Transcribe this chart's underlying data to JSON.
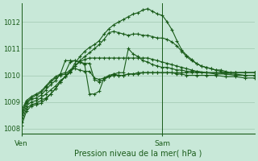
{
  "title": "Pression niveau de la mer( hPa )",
  "background_color": "#c8e8d8",
  "grid_color": "#a0c8b0",
  "line_color": "#1a5c1a",
  "ylim": [
    1007.8,
    1012.7
  ],
  "yticks": [
    1008,
    1009,
    1010,
    1011,
    1012
  ],
  "xlim": [
    0,
    24
  ],
  "ven_x": 0,
  "sam_x": 14.5,
  "series": [
    [
      0.0,
      1008.25,
      0.5,
      1008.75,
      1.0,
      1008.9,
      1.5,
      1008.95,
      2.0,
      1009.05,
      2.5,
      1009.15,
      3.0,
      1009.3,
      3.5,
      1009.5,
      4.0,
      1009.75,
      4.5,
      1009.95,
      5.0,
      1010.15,
      5.5,
      1010.45,
      6.0,
      1010.7,
      6.5,
      1010.9,
      7.0,
      1011.05,
      7.5,
      1011.15,
      8.0,
      1011.3,
      8.5,
      1011.55,
      9.0,
      1011.75,
      9.5,
      1011.9,
      10.0,
      1012.0,
      10.5,
      1012.1,
      11.0,
      1012.2,
      11.5,
      1012.3,
      12.0,
      1012.35,
      12.5,
      1012.45,
      13.0,
      1012.5,
      13.5,
      1012.4,
      14.0,
      1012.3,
      14.5,
      1012.25,
      15.0,
      1012.0,
      15.5,
      1011.7,
      16.0,
      1011.3,
      16.5,
      1010.95,
      17.0,
      1010.75,
      17.5,
      1010.6,
      18.0,
      1010.45,
      18.5,
      1010.35,
      19.0,
      1010.3,
      19.5,
      1010.25,
      20.0,
      1010.2,
      20.5,
      1010.2,
      21.0,
      1010.15,
      21.5,
      1010.1,
      22.0,
      1010.1,
      23.0,
      1010.1,
      24.0,
      1010.1
    ],
    [
      0.0,
      1008.4,
      0.5,
      1008.85,
      1.0,
      1009.0,
      1.5,
      1009.05,
      2.0,
      1009.15,
      2.5,
      1009.3,
      3.0,
      1009.45,
      3.5,
      1009.6,
      4.0,
      1009.8,
      4.5,
      1009.95,
      5.0,
      1010.1,
      5.5,
      1010.35,
      6.0,
      1010.55,
      6.5,
      1010.7,
      7.0,
      1010.85,
      7.5,
      1011.0,
      8.0,
      1011.15,
      8.5,
      1011.35,
      9.0,
      1011.6,
      9.5,
      1011.65,
      10.0,
      1011.6,
      10.5,
      1011.55,
      11.0,
      1011.5,
      11.5,
      1011.55,
      12.0,
      1011.55,
      12.5,
      1011.5,
      13.0,
      1011.5,
      13.5,
      1011.45,
      14.0,
      1011.4,
      14.5,
      1011.4,
      15.0,
      1011.35,
      15.5,
      1011.25,
      16.0,
      1011.1,
      16.5,
      1010.9,
      17.0,
      1010.7,
      17.5,
      1010.55,
      18.0,
      1010.45,
      18.5,
      1010.35,
      19.0,
      1010.3,
      19.5,
      1010.25,
      20.0,
      1010.2,
      20.5,
      1010.15,
      21.0,
      1010.1,
      22.0,
      1010.1,
      23.0,
      1010.1,
      24.0,
      1010.1
    ],
    [
      0.0,
      1008.7,
      0.5,
      1009.05,
      1.0,
      1009.2,
      1.5,
      1009.3,
      2.0,
      1009.4,
      2.5,
      1009.6,
      3.0,
      1009.8,
      3.5,
      1009.95,
      4.0,
      1010.05,
      4.5,
      1010.1,
      5.0,
      1010.5,
      5.5,
      1010.55,
      6.0,
      1010.5,
      6.5,
      1010.45,
      7.0,
      1010.45,
      7.5,
      1009.85,
      8.0,
      1009.75,
      8.5,
      1009.85,
      9.0,
      1009.95,
      9.5,
      1010.05,
      10.0,
      1010.0,
      10.5,
      1010.0,
      11.0,
      1010.05,
      11.5,
      1010.05,
      12.0,
      1010.1,
      12.5,
      1010.1,
      13.0,
      1010.1,
      13.5,
      1010.1,
      14.0,
      1010.1,
      14.5,
      1010.1,
      15.0,
      1010.1,
      15.5,
      1010.1,
      16.0,
      1010.1,
      16.5,
      1010.1,
      17.0,
      1010.1,
      17.5,
      1010.1,
      18.0,
      1010.1,
      18.5,
      1010.1,
      19.0,
      1010.1,
      20.0,
      1010.1,
      21.0,
      1010.05,
      22.0,
      1010.05,
      23.0,
      1010.0,
      24.0,
      1010.0
    ],
    [
      0.0,
      1008.6,
      0.5,
      1009.0,
      1.0,
      1009.15,
      1.5,
      1009.25,
      2.0,
      1009.35,
      2.5,
      1009.55,
      3.0,
      1009.75,
      3.5,
      1009.9,
      4.0,
      1010.0,
      4.5,
      1010.05,
      5.0,
      1010.2,
      5.5,
      1010.25,
      6.0,
      1010.2,
      6.5,
      1010.15,
      7.0,
      1010.15,
      7.5,
      1009.9,
      8.0,
      1009.85,
      8.5,
      1009.9,
      9.0,
      1009.95,
      9.5,
      1010.0,
      10.0,
      1010.0,
      10.5,
      1010.0,
      11.0,
      1010.05,
      11.5,
      1010.05,
      12.0,
      1010.05,
      12.5,
      1010.1,
      13.0,
      1010.1,
      13.5,
      1010.1,
      14.0,
      1010.1,
      14.5,
      1010.1,
      15.0,
      1010.1,
      15.5,
      1010.1,
      16.0,
      1010.05,
      16.5,
      1010.05,
      17.0,
      1010.0,
      18.0,
      1010.0,
      19.0,
      1010.0,
      20.0,
      1010.0,
      21.0,
      1009.95,
      22.0,
      1009.95,
      23.0,
      1009.9,
      24.0,
      1009.9
    ],
    [
      0.0,
      1008.5,
      0.5,
      1008.95,
      1.0,
      1009.1,
      1.5,
      1009.15,
      2.0,
      1009.25,
      2.5,
      1009.45,
      3.0,
      1009.65,
      3.5,
      1009.8,
      4.0,
      1010.05,
      4.5,
      1010.55,
      5.0,
      1010.55,
      5.5,
      1010.55,
      6.0,
      1010.5,
      6.5,
      1010.4,
      7.0,
      1009.3,
      7.5,
      1009.3,
      8.0,
      1009.4,
      8.5,
      1009.9,
      9.0,
      1010.0,
      9.5,
      1010.05,
      10.0,
      1010.1,
      10.5,
      1010.1,
      11.0,
      1011.0,
      11.5,
      1010.8,
      12.0,
      1010.7,
      12.5,
      1010.55,
      13.0,
      1010.5,
      13.5,
      1010.4,
      14.0,
      1010.35,
      14.5,
      1010.3,
      15.0,
      1010.3,
      15.5,
      1010.25,
      16.0,
      1010.2,
      16.5,
      1010.2,
      17.0,
      1010.15,
      17.5,
      1010.15,
      18.0,
      1010.15,
      19.0,
      1010.1,
      20.0,
      1010.1,
      21.0,
      1010.1,
      22.0,
      1010.1,
      23.0,
      1010.1,
      24.0,
      1010.1
    ],
    [
      0.0,
      1008.1,
      0.5,
      1008.65,
      1.0,
      1008.85,
      1.5,
      1008.9,
      2.0,
      1008.95,
      2.5,
      1009.1,
      3.0,
      1009.3,
      3.5,
      1009.5,
      4.0,
      1009.75,
      4.5,
      1009.95,
      5.0,
      1010.15,
      5.5,
      1010.35,
      6.0,
      1010.5,
      6.5,
      1010.6,
      7.0,
      1010.65,
      7.5,
      1010.65,
      8.0,
      1010.65,
      8.5,
      1010.65,
      9.0,
      1010.65,
      9.5,
      1010.65,
      10.0,
      1010.65,
      10.5,
      1010.65,
      11.0,
      1010.65,
      11.5,
      1010.65,
      12.0,
      1010.65,
      12.5,
      1010.65,
      13.0,
      1010.65,
      13.5,
      1010.6,
      14.0,
      1010.55,
      14.5,
      1010.5,
      15.0,
      1010.45,
      15.5,
      1010.4,
      16.0,
      1010.35,
      16.5,
      1010.3,
      17.0,
      1010.25,
      17.5,
      1010.2,
      18.0,
      1010.15,
      19.0,
      1010.1,
      20.0,
      1010.05,
      21.0,
      1010.05,
      22.0,
      1010.0,
      23.0,
      1010.0,
      24.0,
      1010.0
    ]
  ]
}
